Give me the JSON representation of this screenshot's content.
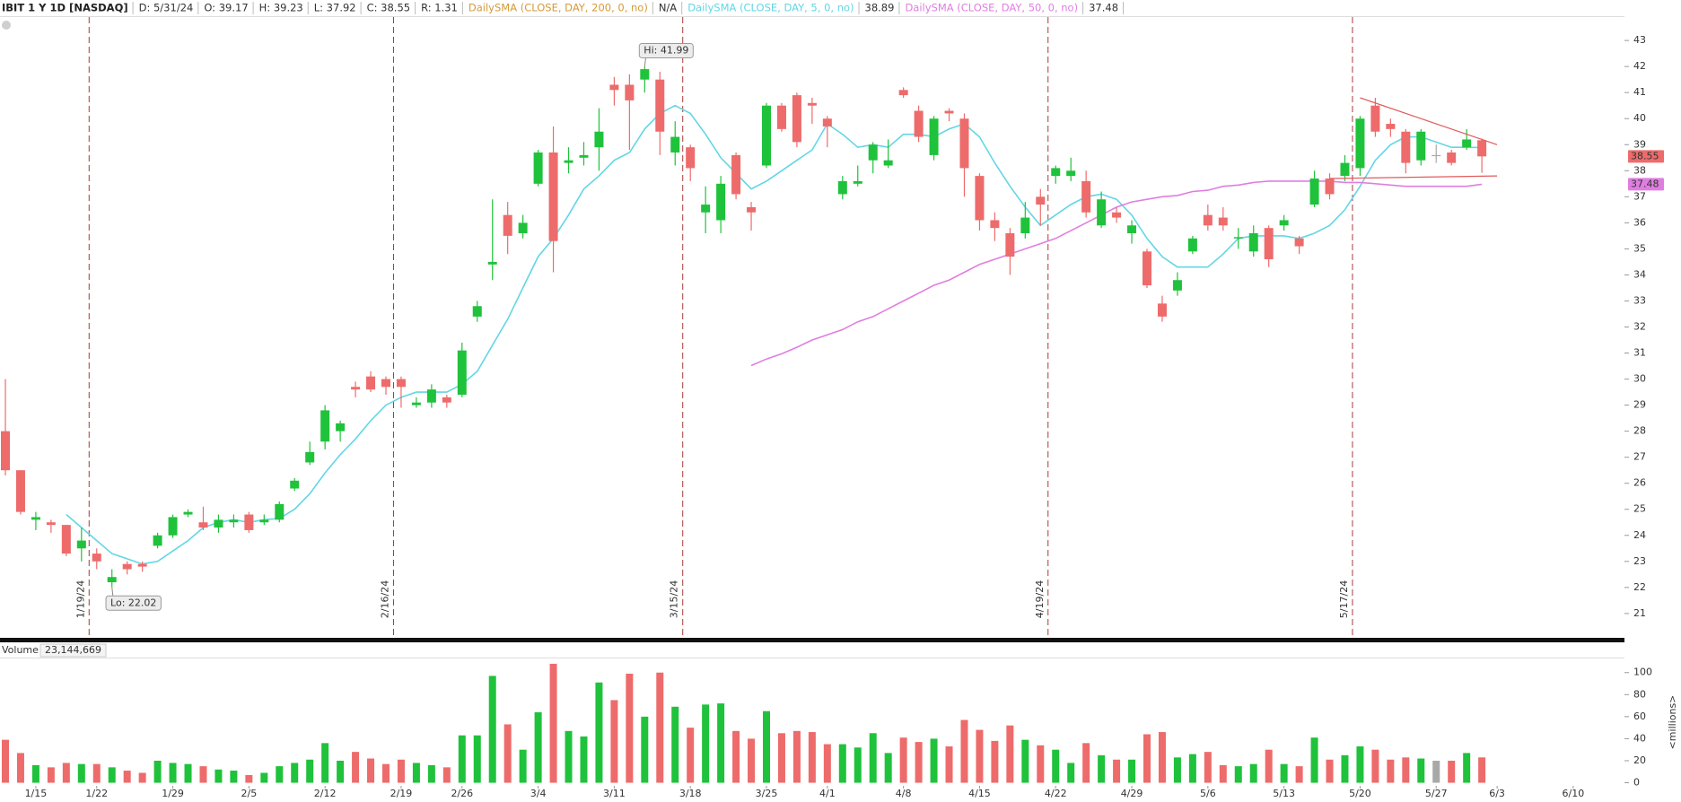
{
  "header": {
    "symbol": "IBIT 1 Y 1D [NASDAQ]",
    "items": [
      "D: 5/31/24",
      "O: 39.17",
      "H: 39.23",
      "L: 37.92",
      "C: 38.55",
      "R: 1.31"
    ],
    "studies": [
      {
        "name": "DailySMA (CLOSE, DAY, 200, 0, no)",
        "color": "#d49a3a",
        "value": "N/A"
      }
    ]
  },
  "chart_data": [
    {
      "type": "candlestick",
      "categories": [
        null,
        null,
        "1/15",
        null,
        null,
        null,
        "1/22",
        null,
        null,
        null,
        null,
        "1/29",
        null,
        null,
        null,
        null,
        "2/5",
        null,
        null,
        null,
        null,
        "2/12",
        null,
        null,
        null,
        null,
        "2/19",
        null,
        null,
        null,
        "2/26",
        null,
        null,
        null,
        null,
        "3/4",
        null,
        null,
        null,
        null,
        "3/11",
        null,
        null,
        null,
        null,
        "3/18",
        null,
        null,
        null,
        null,
        "3/25",
        null,
        null,
        null,
        "4/1",
        null,
        null,
        null,
        null,
        "4/8",
        null,
        null,
        null,
        null,
        "4/15",
        null,
        null,
        null,
        null,
        "4/22",
        null,
        null,
        null,
        null,
        "4/29",
        null,
        null,
        null,
        null,
        "5/6",
        null,
        null,
        null,
        null,
        "5/13",
        null,
        null,
        null,
        null,
        "5/20",
        null,
        null,
        null,
        null,
        "5/27",
        null,
        null,
        null,
        "6/3",
        null,
        null,
        null,
        null,
        "6/10"
      ],
      "open": [
        28.0,
        26.5,
        24.6,
        24.5,
        24.4,
        23.5,
        23.3,
        22.2,
        22.9,
        22.9,
        23.6,
        24.0,
        24.8,
        24.5,
        24.3,
        24.5,
        24.8,
        24.5,
        24.6,
        25.8,
        26.8,
        27.6,
        28.0,
        29.7,
        30.1,
        30.0,
        30.0,
        29.0,
        29.1,
        29.3,
        29.4,
        32.4,
        34.4,
        36.3,
        35.6,
        37.5,
        38.7,
        38.3,
        38.5,
        38.9,
        41.3,
        41.3,
        41.5,
        41.5,
        38.7,
        38.9,
        36.4,
        36.1,
        38.6,
        36.6,
        38.2,
        40.5,
        40.9,
        40.6,
        40.0,
        37.1,
        37.5,
        38.4,
        38.2,
        41.1,
        40.3,
        38.6,
        40.3,
        40.0,
        37.8,
        36.1,
        35.6,
        35.6,
        37.0,
        37.8,
        37.8,
        37.6,
        35.9,
        36.4,
        35.6,
        34.9,
        32.9,
        33.4,
        34.9,
        36.3,
        36.2,
        35.4,
        34.9,
        35.8,
        35.9,
        35.4,
        36.7,
        37.7,
        37.8,
        38.1,
        40.5,
        39.8,
        39.5,
        38.4,
        38.6,
        38.7,
        38.9,
        39.17,
        null,
        null,
        null,
        null,
        null,
        null
      ],
      "high": [
        30.0,
        26.5,
        24.9,
        24.6,
        24.4,
        24.3,
        23.5,
        22.7,
        23.0,
        23.0,
        24.1,
        24.8,
        25.0,
        25.1,
        24.8,
        24.8,
        24.9,
        24.8,
        25.3,
        26.2,
        27.6,
        29.0,
        28.4,
        29.9,
        30.3,
        30.1,
        30.1,
        29.3,
        29.8,
        29.4,
        31.4,
        33.0,
        36.9,
        36.8,
        36.3,
        38.8,
        39.7,
        38.9,
        39.1,
        40.4,
        41.6,
        41.7,
        41.99,
        41.8,
        39.9,
        39.0,
        37.4,
        37.8,
        38.7,
        36.8,
        40.6,
        40.6,
        41.0,
        40.8,
        40.1,
        37.8,
        38.2,
        39.1,
        39.2,
        41.2,
        40.5,
        40.1,
        40.4,
        40.2,
        37.9,
        36.4,
        35.8,
        36.8,
        37.3,
        38.2,
        38.5,
        38.0,
        37.2,
        36.6,
        36.1,
        35.0,
        33.2,
        34.1,
        35.5,
        36.7,
        36.6,
        35.8,
        35.9,
        35.9,
        36.3,
        35.5,
        38.0,
        37.9,
        38.6,
        40.1,
        40.8,
        40.0,
        39.6,
        39.6,
        39.0,
        38.8,
        39.6,
        39.23,
        null,
        null,
        null,
        null,
        null,
        null
      ],
      "low": [
        26.3,
        24.8,
        24.2,
        24.1,
        23.2,
        23.0,
        22.7,
        22.02,
        22.5,
        22.6,
        23.5,
        23.9,
        24.7,
        24.2,
        24.1,
        24.3,
        24.1,
        24.4,
        24.5,
        25.7,
        26.7,
        27.3,
        27.6,
        29.3,
        29.5,
        29.4,
        28.9,
        28.9,
        28.9,
        28.9,
        29.3,
        32.2,
        33.8,
        34.8,
        35.4,
        37.4,
        34.1,
        37.9,
        38.2,
        38.0,
        40.5,
        38.8,
        41.0,
        38.6,
        38.2,
        37.6,
        35.6,
        35.6,
        36.9,
        35.7,
        38.1,
        39.5,
        38.9,
        39.8,
        38.9,
        36.9,
        37.4,
        37.9,
        38.1,
        40.8,
        39.1,
        38.4,
        39.9,
        37.0,
        35.7,
        35.3,
        34.0,
        35.4,
        35.9,
        37.5,
        37.6,
        36.2,
        35.8,
        36.0,
        35.2,
        33.5,
        32.2,
        33.2,
        34.8,
        35.7,
        35.7,
        35.0,
        34.7,
        34.3,
        35.7,
        34.8,
        36.6,
        36.9,
        37.6,
        37.8,
        39.3,
        39.3,
        37.9,
        38.2,
        38.3,
        38.2,
        38.8,
        37.92,
        null,
        null,
        null,
        null,
        null,
        null
      ],
      "close": [
        26.5,
        24.9,
        24.7,
        24.4,
        23.3,
        23.8,
        23.0,
        22.4,
        22.7,
        22.8,
        24.0,
        24.7,
        24.9,
        24.3,
        24.6,
        24.6,
        24.2,
        24.6,
        25.2,
        26.1,
        27.2,
        28.8,
        28.3,
        29.6,
        29.6,
        29.7,
        29.7,
        29.1,
        29.6,
        29.1,
        31.1,
        32.8,
        34.5,
        35.5,
        36.0,
        38.7,
        35.3,
        38.4,
        38.6,
        39.5,
        41.1,
        40.7,
        41.9,
        39.5,
        39.3,
        38.1,
        36.7,
        37.5,
        37.1,
        36.4,
        40.5,
        39.6,
        39.1,
        40.5,
        39.7,
        37.6,
        37.6,
        39.0,
        38.4,
        40.9,
        39.3,
        40.0,
        40.2,
        38.1,
        36.1,
        35.8,
        34.7,
        36.2,
        36.7,
        38.1,
        38.0,
        36.4,
        36.9,
        36.2,
        35.9,
        33.6,
        32.4,
        33.8,
        35.4,
        35.9,
        35.9,
        35.45,
        35.6,
        34.6,
        36.1,
        35.1,
        37.7,
        37.1,
        38.3,
        40.0,
        39.5,
        39.6,
        38.3,
        39.5,
        38.6,
        38.3,
        39.2,
        38.55,
        null,
        null,
        null,
        null,
        null,
        null
      ],
      "up_color": "#1fc23b",
      "down_color": "#ee6b6b",
      "flat_color": "#a8a8a8",
      "ylim": [
        20.1,
        43.9
      ],
      "yticks": [
        21,
        22,
        23,
        24,
        25,
        26,
        27,
        28,
        29,
        30,
        31,
        32,
        33,
        34,
        35,
        36,
        37,
        38,
        39,
        40,
        41,
        42,
        43
      ],
      "grid": false,
      "series": [
        {
          "name": "DailySMA (CLOSE, DAY, 5, 0, no)",
          "color": "#62d6e4",
          "values": [
            null,
            null,
            null,
            null,
            24.8,
            24.3,
            23.8,
            23.3,
            23.1,
            22.9,
            23.0,
            23.4,
            23.8,
            24.3,
            24.5,
            24.6,
            24.5,
            24.6,
            24.65,
            25.0,
            25.6,
            26.4,
            27.1,
            27.7,
            28.4,
            29.0,
            29.3,
            29.5,
            29.5,
            29.5,
            29.8,
            30.3,
            31.3,
            32.3,
            33.5,
            34.7,
            35.4,
            36.3,
            37.3,
            37.8,
            38.4,
            38.7,
            39.6,
            40.2,
            40.5,
            40.2,
            39.4,
            38.5,
            37.9,
            37.3,
            37.6,
            38.0,
            38.4,
            38.8,
            39.8,
            39.4,
            38.9,
            39.0,
            38.9,
            39.4,
            39.4,
            39.3,
            39.6,
            39.8,
            39.3,
            38.3,
            37.4,
            36.6,
            35.9,
            36.3,
            36.7,
            37.0,
            37.1,
            36.9,
            36.3,
            35.4,
            34.7,
            34.3,
            34.3,
            34.3,
            34.8,
            35.4,
            35.5,
            35.5,
            35.5,
            35.4,
            35.6,
            35.9,
            36.5,
            37.4,
            38.4,
            39.0,
            39.3,
            39.3,
            39.1,
            38.9,
            38.9,
            38.89,
            null,
            null,
            null,
            null,
            null,
            null
          ]
        },
        {
          "name": "DailySMA (CLOSE, DAY, 50, 0, no)",
          "color": "#e07ee0",
          "values": [
            null,
            null,
            null,
            null,
            null,
            null,
            null,
            null,
            null,
            null,
            null,
            null,
            null,
            null,
            null,
            null,
            null,
            null,
            null,
            null,
            null,
            null,
            null,
            null,
            null,
            null,
            null,
            null,
            null,
            null,
            null,
            null,
            null,
            null,
            null,
            null,
            null,
            null,
            null,
            null,
            null,
            null,
            null,
            null,
            null,
            null,
            null,
            null,
            null,
            30.52,
            30.77,
            30.97,
            31.22,
            31.5,
            31.7,
            31.9,
            32.2,
            32.4,
            32.7,
            33.0,
            33.3,
            33.6,
            33.8,
            34.1,
            34.4,
            34.6,
            34.8,
            35.0,
            35.2,
            35.4,
            35.7,
            36.0,
            36.3,
            36.6,
            36.8,
            36.9,
            37.0,
            37.05,
            37.2,
            37.25,
            37.4,
            37.45,
            37.55,
            37.6,
            37.6,
            37.6,
            37.6,
            37.6,
            37.55,
            37.55,
            37.5,
            37.45,
            37.4,
            37.4,
            37.4,
            37.4,
            37.4,
            37.48,
            null,
            null,
            null,
            null,
            null,
            null
          ]
        }
      ],
      "markers": [
        {
          "label": "1/19/24",
          "index": 5
        },
        {
          "label": "2/16/24",
          "index": 25
        },
        {
          "label": "3/15/24",
          "index": 44
        },
        {
          "label": "4/19/24",
          "index": 68
        },
        {
          "label": "5/17/24",
          "index": 88
        }
      ],
      "marker_color": "#a83a3a",
      "annotations": [
        {
          "text": "Hi: 41.99",
          "index": 42,
          "anchor": "high"
        },
        {
          "text": "Lo: 22.02",
          "index": 7,
          "anchor": "low"
        }
      ],
      "trendlines": [
        {
          "x": [
            89,
            98
          ],
          "y": [
            40.8,
            39.0
          ]
        },
        {
          "x": [
            87,
            98
          ],
          "y": [
            37.7,
            37.8
          ]
        }
      ],
      "trendline_color": "#e05a5a"
    },
    {
      "type": "bar",
      "title": "Volume",
      "header_value": "23,144,669",
      "axis_label": "<millions>",
      "values": [
        39,
        27,
        16,
        14,
        18,
        17,
        17,
        14,
        11,
        9,
        20,
        18,
        17,
        15,
        12,
        11,
        7,
        9,
        15,
        18,
        21,
        36,
        20,
        28,
        22,
        17,
        21,
        18,
        16,
        14,
        43,
        43,
        97,
        53,
        30,
        64,
        108,
        47,
        42,
        91,
        75,
        99,
        60,
        100,
        69,
        50,
        71,
        72,
        47,
        40,
        65,
        45,
        47,
        46,
        35,
        35,
        32,
        45,
        27,
        41,
        37,
        40,
        33,
        57,
        48,
        38,
        52,
        39,
        34,
        30,
        18,
        36,
        25,
        21,
        21,
        44,
        46,
        23,
        26,
        28,
        16,
        15,
        17,
        30,
        17,
        15,
        41,
        21,
        25,
        33,
        30,
        21,
        23,
        22,
        20,
        20,
        27,
        23,
        null,
        null,
        null,
        null,
        null,
        null
      ],
      "ylim": [
        -2,
        112
      ],
      "yticks": [
        0,
        20,
        40,
        60,
        80,
        100
      ]
    }
  ]
}
